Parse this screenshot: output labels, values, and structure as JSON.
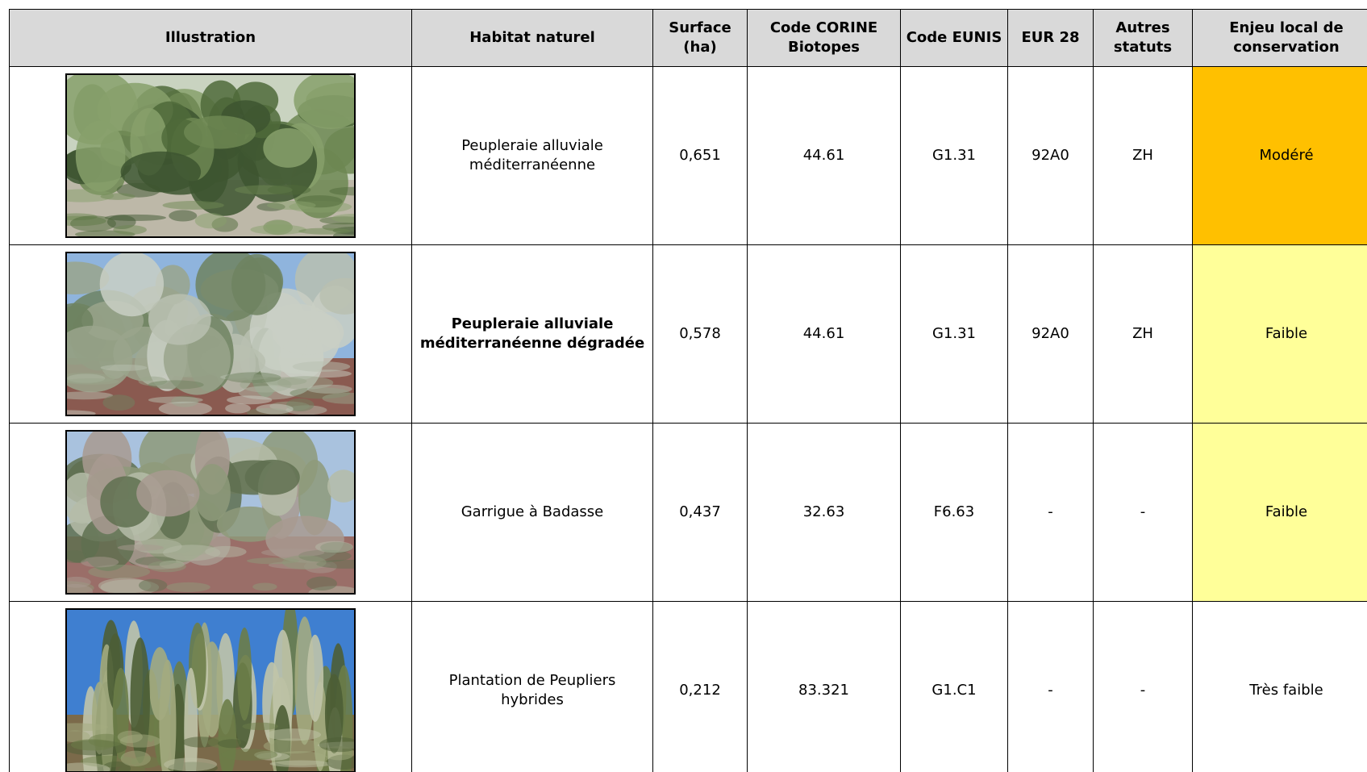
{
  "table": {
    "header": [
      "Illustration",
      "Habitat naturel",
      "Surface (ha)",
      "Code CORINE Biotopes",
      "Code EUNIS",
      "EUR 28",
      "Autres statuts",
      "Enjeu local de conservation"
    ],
    "rows": [
      [
        "Peupleraie alluviale méditerranéenne",
        "0,651",
        "44.61",
        "G1.31",
        "92A0",
        "ZH",
        "Modéré"
      ],
      [
        "Peupleraie alluviale méditerranéenne dégradée",
        "0,578",
        "44.61",
        "G1.31",
        "92A0",
        "ZH",
        "Faible"
      ],
      [
        "Garrigue à Badasse",
        "0,437",
        "32.63",
        "F6.63",
        "-",
        "-",
        "Faible"
      ],
      [
        "Plantation de Peupliers hybrides",
        "0,212",
        "83.321",
        "G1.C1",
        "-",
        "-",
        "Très faible"
      ]
    ]
  }
}
